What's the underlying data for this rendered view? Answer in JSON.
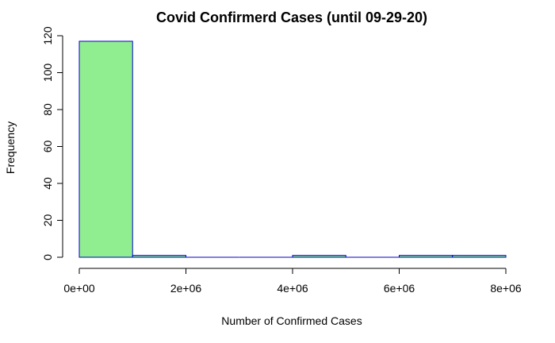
{
  "chart_data": {
    "type": "bar",
    "subtype": "histogram",
    "title": "Covid Confirmerd Cases (until 09-29-20)",
    "xlabel": "Number of Confirmed Cases",
    "ylabel": "Frequency",
    "bins": [
      {
        "start": 0,
        "end": 1000000,
        "count": 117
      },
      {
        "start": 1000000,
        "end": 2000000,
        "count": 1
      },
      {
        "start": 2000000,
        "end": 3000000,
        "count": 0
      },
      {
        "start": 3000000,
        "end": 4000000,
        "count": 0
      },
      {
        "start": 4000000,
        "end": 5000000,
        "count": 1
      },
      {
        "start": 5000000,
        "end": 6000000,
        "count": 0
      },
      {
        "start": 6000000,
        "end": 7000000,
        "count": 1
      },
      {
        "start": 7000000,
        "end": 8000000,
        "count": 1
      }
    ],
    "xlim": [
      0,
      8000000
    ],
    "ylim": [
      0,
      120
    ],
    "x_ticks": [
      {
        "value": 0,
        "label": "0e+00"
      },
      {
        "value": 2000000,
        "label": "2e+06"
      },
      {
        "value": 4000000,
        "label": "4e+06"
      },
      {
        "value": 6000000,
        "label": "6e+06"
      },
      {
        "value": 8000000,
        "label": "8e+06"
      }
    ],
    "y_ticks": [
      {
        "value": 0,
        "label": "0"
      },
      {
        "value": 20,
        "label": "20"
      },
      {
        "value": 40,
        "label": "40"
      },
      {
        "value": 60,
        "label": "60"
      },
      {
        "value": 80,
        "label": "80"
      },
      {
        "value": 100,
        "label": "100"
      },
      {
        "value": 120,
        "label": "120"
      }
    ],
    "bar_fill": "#90EE90",
    "bar_stroke": "#0000CD",
    "grid": false,
    "legend": "none"
  }
}
